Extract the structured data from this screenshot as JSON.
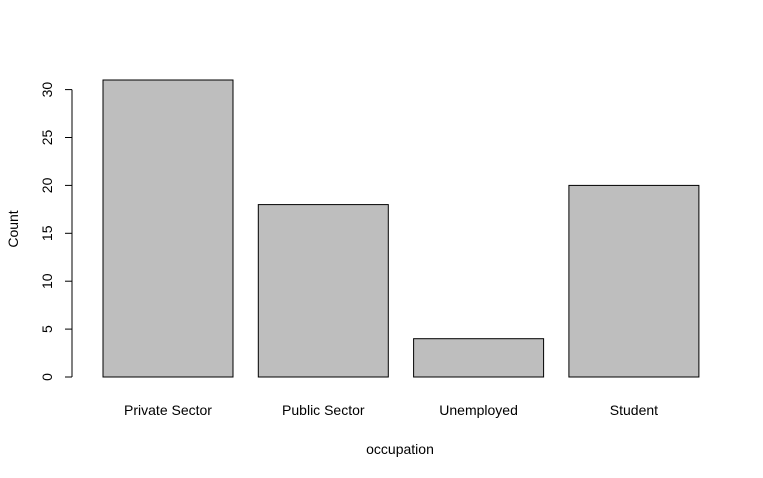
{
  "chart_data": {
    "type": "bar",
    "categories": [
      "Private Sector",
      "Public Sector",
      "Unemployed",
      "Student"
    ],
    "values": [
      31,
      18,
      4,
      20
    ],
    "xlabel": "occupation",
    "ylabel": "Count",
    "ylim": [
      0,
      31
    ],
    "yticks": [
      0,
      5,
      10,
      15,
      20,
      25,
      30
    ],
    "bar_color": "#bebebe",
    "edge_color": "#000000",
    "grid": false,
    "legend": "none"
  }
}
